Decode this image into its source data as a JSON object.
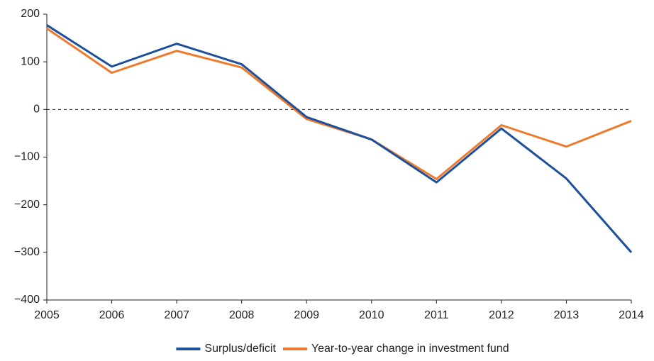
{
  "chart_data": {
    "type": "line",
    "x": [
      2005,
      2006,
      2007,
      2008,
      2009,
      2010,
      2011,
      2012,
      2013,
      2014
    ],
    "xlim": [
      2005,
      2014
    ],
    "xticks": [
      2005,
      2006,
      2007,
      2008,
      2009,
      2010,
      2011,
      2012,
      2013,
      2014
    ],
    "ylim": [
      -400,
      200
    ],
    "yticks": [
      {
        "value": -400,
        "label": "−400"
      },
      {
        "value": -300,
        "label": "−300"
      },
      {
        "value": -200,
        "label": "−200"
      },
      {
        "value": -100,
        "label": "−100"
      },
      0,
      100,
      200
    ],
    "zero_line": true,
    "legend": "bottom",
    "series": [
      {
        "name": "Surplus/deficit",
        "color": "#1c4f9c",
        "values": [
          177,
          90,
          138,
          95,
          -16,
          -63,
          -153,
          -40,
          -145,
          -300
        ]
      },
      {
        "name": "Year-to-year change in investment fund",
        "color": "#f07a2c",
        "values": [
          170,
          77,
          123,
          88,
          -20,
          -63,
          -146,
          -33,
          -78,
          -24
        ]
      }
    ]
  }
}
